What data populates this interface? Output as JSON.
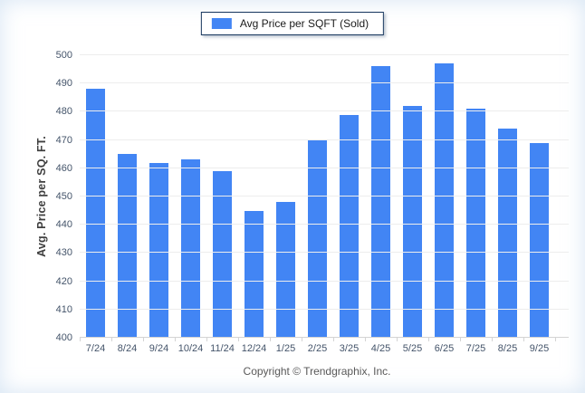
{
  "legend": {
    "label": "Avg Price per SQFT (Sold)"
  },
  "y_axis": {
    "title": "Avg. Price per SQ. FT."
  },
  "footer": {
    "copyright": "Copyright © Trendgraphix, Inc."
  },
  "colors": {
    "bar": "#4285F4",
    "legend_border": "#17375E",
    "tick_label": "#44546A",
    "axis_title": "#3f3f3f",
    "grid": "#ededed",
    "copyright": "#595959"
  },
  "chart_data": {
    "type": "bar",
    "title": "",
    "categories": [
      "7/24",
      "8/24",
      "9/24",
      "10/24",
      "11/24",
      "12/24",
      "1/25",
      "2/25",
      "3/25",
      "4/25",
      "5/25",
      "6/25",
      "7/25",
      "8/25",
      "9/25"
    ],
    "values": [
      488,
      465,
      462,
      463,
      459,
      445,
      448,
      470,
      479,
      496,
      482,
      497,
      481,
      474,
      469
    ],
    "series_name": "Avg Price per SQFT (Sold)",
    "xlabel": "",
    "ylabel": "Avg. Price per SQ. FT.",
    "ylim": [
      400,
      500
    ],
    "ytick_step": 10,
    "grid": true,
    "legend_position": "top"
  }
}
